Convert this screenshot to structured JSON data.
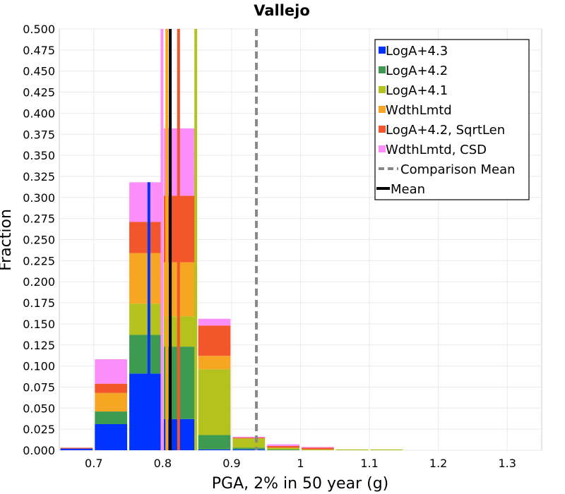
{
  "chart_data": {
    "type": "bar",
    "stacked": true,
    "title": "Vallejo",
    "xlabel": "PGA, 2% in 50 year (g)",
    "ylabel": "Fraction",
    "xlim": [
      0.65,
      1.35
    ],
    "ylim": [
      0,
      0.5
    ],
    "bin_width": 0.05,
    "x_ticks": [
      "0.7",
      "0.8",
      "0.9",
      "1",
      "1.1",
      "1.2",
      "1.3"
    ],
    "x_tick_values": [
      0.7,
      0.8,
      0.9,
      1.0,
      1.1,
      1.2,
      1.3
    ],
    "y_ticks": [
      "0.000",
      "0.025",
      "0.050",
      "0.075",
      "0.100",
      "0.125",
      "0.150",
      "0.175",
      "0.200",
      "0.225",
      "0.250",
      "0.275",
      "0.300",
      "0.325",
      "0.350",
      "0.375",
      "0.400",
      "0.425",
      "0.450",
      "0.475",
      "0.500"
    ],
    "bin_centers": [
      0.675,
      0.725,
      0.775,
      0.825,
      0.875,
      0.925,
      0.975,
      1.025,
      1.075,
      1.125
    ],
    "series": [
      {
        "name": "LogA+4.3",
        "color": "#0033ff",
        "values": [
          0.002,
          0.031,
          0.091,
          0.037,
          0.001,
          0.001,
          0.0,
          0.0,
          0.0,
          0.0
        ]
      },
      {
        "name": "LogA+4.2",
        "color": "#3f9a51",
        "values": [
          0.0,
          0.015,
          0.046,
          0.086,
          0.017,
          0.002,
          0.001,
          0.0,
          0.0,
          0.0
        ]
      },
      {
        "name": "LogA+4.1",
        "color": "#b4c21e",
        "values": [
          0.0,
          0.0,
          0.037,
          0.036,
          0.078,
          0.011,
          0.002,
          0.001,
          0.001,
          0.001
        ]
      },
      {
        "name": "WdthLmtd",
        "color": "#f7a623",
        "values": [
          0.0,
          0.022,
          0.06,
          0.064,
          0.016,
          0.0,
          0.0,
          0.0,
          0.0,
          0.0
        ]
      },
      {
        "name": "LogA+4.2, SqrtLen",
        "color": "#f2562a",
        "values": [
          0.001,
          0.011,
          0.037,
          0.079,
          0.036,
          0.001,
          0.002,
          0.002,
          0.0,
          0.0
        ]
      },
      {
        "name": "WdthLmtd, CSD",
        "color": "#fb8ef9",
        "values": [
          0.0,
          0.029,
          0.047,
          0.08,
          0.008,
          0.001,
          0.002,
          0.001,
          0.0,
          0.0
        ]
      }
    ],
    "mean_lines": [
      {
        "series": "LogA+4.3",
        "color": "#0033ff",
        "x": 0.78,
        "y_top": 0.318
      },
      {
        "series": "WdthLmtd, CSD",
        "color": "#fb8ef9",
        "x": 0.799
      },
      {
        "series": "WdthLmtd",
        "color": "#f7a623",
        "x": 0.806
      },
      {
        "series": "LogA+4.2, SqrtLen",
        "color": "#f2562a",
        "x": 0.823
      },
      {
        "series": "LogA+4.1",
        "color": "#b4c21e",
        "x": 0.848
      },
      {
        "series": "Mean",
        "color": "#000000",
        "x": 0.811
      }
    ],
    "comparison_mean": {
      "x": 0.936,
      "color": "#888888"
    },
    "legend": {
      "position": "top-right",
      "entries": [
        {
          "label": "LogA+4.3",
          "color": "#0033ff",
          "kind": "box"
        },
        {
          "label": "LogA+4.2",
          "color": "#3f9a51",
          "kind": "box"
        },
        {
          "label": "LogA+4.1",
          "color": "#b4c21e",
          "kind": "box"
        },
        {
          "label": "WdthLmtd",
          "color": "#f7a623",
          "kind": "box"
        },
        {
          "label": "LogA+4.2, SqrtLen",
          "color": "#f2562a",
          "kind": "box"
        },
        {
          "label": "WdthLmtd, CSD",
          "color": "#fb8ef9",
          "kind": "box"
        },
        {
          "label": "Comparison Mean",
          "color": "#888888",
          "kind": "dashed"
        },
        {
          "label": "Mean",
          "color": "#000000",
          "kind": "solid"
        }
      ]
    }
  }
}
